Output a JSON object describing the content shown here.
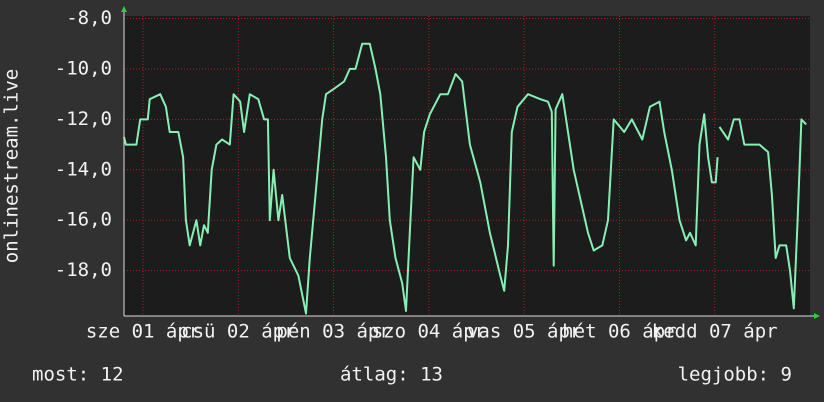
{
  "chart_data": {
    "type": "line",
    "ylabel": "onlinestream.live",
    "xlim": [
      0,
      7.2
    ],
    "ylim": [
      -19.8,
      -7.9
    ],
    "yticks": [
      {
        "value": -8,
        "label": "-8,0"
      },
      {
        "value": -10,
        "label": "-10,0"
      },
      {
        "value": -12,
        "label": "-12,0"
      },
      {
        "value": -14,
        "label": "-14,0"
      },
      {
        "value": -16,
        "label": "-16,0"
      },
      {
        "value": -18,
        "label": "-18,0"
      }
    ],
    "xticks": [
      {
        "value": 0.2,
        "label": "sze 01 ápr"
      },
      {
        "value": 1.2,
        "label": "csü 02 ápr"
      },
      {
        "value": 2.2,
        "label": "pén 03 ápr"
      },
      {
        "value": 3.2,
        "label": "szo 04 ápr"
      },
      {
        "value": 4.2,
        "label": "vas 05 ápr"
      },
      {
        "value": 5.2,
        "label": "hét 06 ápr"
      },
      {
        "value": 6.2,
        "label": "kedd 07 ápr"
      }
    ],
    "grid": true,
    "series": [
      {
        "color": "#86f0b4",
        "x": [
          0,
          0.02,
          0.13,
          0.17,
          0.25,
          0.27,
          0.38,
          0.44,
          0.48,
          0.57,
          0.62,
          0.65,
          0.69,
          0.76,
          0.8,
          0.84,
          0.88,
          0.92,
          0.97,
          1.03,
          1.11,
          1.15,
          1.22,
          1.26,
          1.32,
          1.41,
          1.47,
          1.51,
          1.53,
          1.57,
          1.62,
          1.66,
          1.74,
          1.83,
          1.91,
          1.95,
          2.01,
          2.08,
          2.12,
          2.2,
          2.31,
          2.37,
          2.43,
          2.5,
          2.58,
          2.64,
          2.69,
          2.75,
          2.79,
          2.85,
          2.92,
          2.96,
          3.0,
          3.04,
          3.11,
          3.15,
          3.21,
          3.32,
          3.4,
          3.48,
          3.55,
          3.63,
          3.74,
          3.84,
          3.95,
          3.99,
          4.03,
          4.07,
          4.13,
          4.24,
          4.37,
          4.45,
          4.49,
          4.51,
          4.53,
          4.6,
          4.64,
          4.68,
          4.72,
          4.78,
          4.87,
          4.93,
          5.02,
          5.08,
          5.14,
          5.25,
          5.33,
          5.44,
          5.52,
          5.62,
          5.67,
          5.75,
          5.83,
          5.9,
          5.94,
          6.0,
          6.04,
          6.09,
          6.13,
          6.17,
          6.21,
          6.23,
          6.24,
          6.25,
          6.34,
          6.4,
          6.46,
          6.51,
          6.67,
          6.76,
          6.8,
          6.84,
          6.88,
          6.95,
          6.99,
          7.03,
          7.07,
          7.11,
          7.16
        ],
        "values": [
          -12.7,
          -13,
          -13,
          -12,
          -12,
          -11.2,
          -11,
          -11.5,
          -12.5,
          -12.5,
          -13.5,
          -16,
          -17,
          -16,
          -17,
          -16.2,
          -16.5,
          -14,
          -13,
          -12.8,
          -13,
          -11,
          -11.3,
          -12.5,
          -11,
          -11.2,
          -12,
          -12,
          -16,
          -14,
          -16,
          -15,
          -17.5,
          -18.2,
          -19.7,
          -17.5,
          -15,
          -12,
          -11,
          -10.8,
          -10.5,
          -10,
          -10,
          -9,
          -9,
          -10,
          -11,
          -13.5,
          -16,
          -17.5,
          -18.5,
          -19.6,
          -16.5,
          -13.5,
          -14,
          -12.5,
          -11.8,
          -11,
          -11,
          -10.2,
          -10.5,
          -13,
          -14.5,
          -16.5,
          -18.2,
          -18.8,
          -17,
          -12.5,
          -11.5,
          -11,
          -11.2,
          -11.3,
          -11.7,
          -17.8,
          -11.6,
          -11,
          -12,
          -13,
          -14,
          -15,
          -16.5,
          -17.2,
          -17,
          -16,
          -12,
          -12.5,
          -12,
          -12.8,
          -11.5,
          -11.3,
          -12.5,
          -14,
          -16,
          -16.8,
          -16.5,
          -17,
          -13,
          -11.8,
          -13.5,
          -14.5,
          -14.5,
          -13.5,
          null,
          -12.3,
          -12.8,
          -12,
          -12,
          -13,
          -13,
          -13.3,
          -15,
          -17.5,
          -17,
          -17,
          -18,
          -19.5,
          -16,
          -12,
          -12.2
        ]
      }
    ],
    "legend": [
      "most: 12",
      "átlag: 13",
      "legjobb: 9"
    ]
  }
}
